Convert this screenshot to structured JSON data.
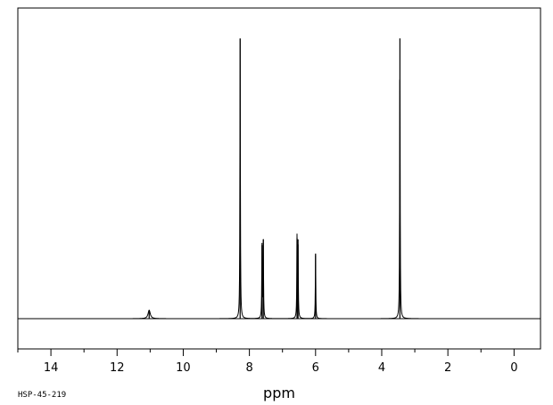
{
  "chart_data": {
    "type": "line",
    "title": "",
    "xlabel": "ppm",
    "ylabel": "",
    "xlim": [
      15,
      -0.8
    ],
    "x_reversed": true,
    "ylim": [
      0,
      1.0
    ],
    "grid": false,
    "x_ticks": [
      14,
      12,
      10,
      8,
      6,
      4,
      2,
      0
    ],
    "tick_labels": [
      "14",
      "12",
      "10",
      "8",
      "6",
      "4",
      "2",
      "0"
    ],
    "peaks": [
      {
        "ppm": 11.03,
        "height": 0.03,
        "width": 0.04
      },
      {
        "ppm": 8.28,
        "height": 0.99,
        "width": 0.008
      },
      {
        "ppm": 7.62,
        "height": 0.26,
        "width": 0.008
      },
      {
        "ppm": 7.58,
        "height": 0.28,
        "width": 0.008
      },
      {
        "ppm": 6.56,
        "height": 0.285,
        "width": 0.008
      },
      {
        "ppm": 6.53,
        "height": 0.28,
        "width": 0.008
      },
      {
        "ppm": 6.0,
        "height": 0.23,
        "width": 0.008
      },
      {
        "ppm": 3.45,
        "height": 0.99,
        "width": 0.008
      }
    ]
  },
  "footer": {
    "code": "HSP-45-219"
  }
}
